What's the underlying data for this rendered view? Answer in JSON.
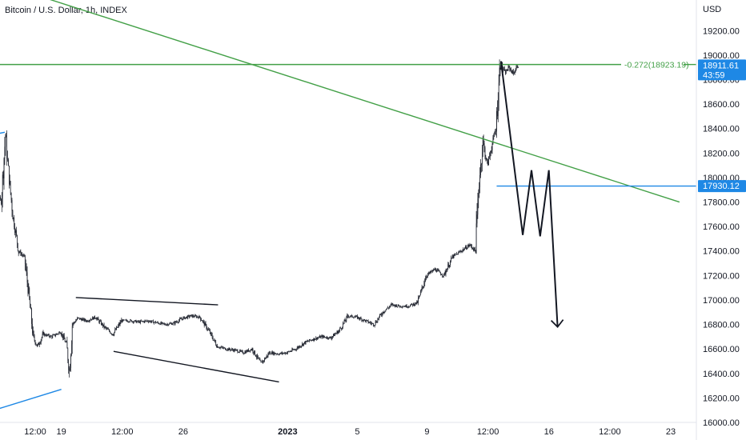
{
  "header": {
    "title": "Bitcoin / U.S. Dollar, 1h, INDEX",
    "currency": "USD"
  },
  "colors": {
    "candles": "#131722",
    "trendline": "#43a047",
    "level_line": "#1e88e5",
    "price_tag": "#1e88e5",
    "fib_label": "#43a047",
    "axis_text": "#131722"
  },
  "chart_data": {
    "type": "candlestick",
    "title": "Bitcoin / U.S. Dollar, 1h, INDEX",
    "y_unit": "USD",
    "ylim": [
      16000,
      19450
    ],
    "y_ticks": [
      16000,
      16200,
      16400,
      16600,
      16800,
      17000,
      17200,
      17400,
      17600,
      17800,
      18000,
      18200,
      18400,
      18600,
      18800,
      19000,
      19200
    ],
    "y_tick_labels": [
      "16000.00",
      "16200.00",
      "16400.00",
      "16600.00",
      "16800.00",
      "17000.00",
      "17200.00",
      "17400.00",
      "17600.00",
      "17800.00",
      "18000.00",
      "18200.00",
      "18400.00",
      "18600.00",
      "18800.00",
      "19000.00",
      "19200.00"
    ],
    "x_ticks": [
      {
        "label": "12:00",
        "time": "2022-12-17 12:00"
      },
      {
        "label": "19",
        "time": "2022-12-19 00:00"
      },
      {
        "label": "12:00",
        "time": "2022-12-22 12:00"
      },
      {
        "label": "26",
        "time": "2022-12-26 00:00"
      },
      {
        "label": "2023",
        "time": "2023-01-01 00:00",
        "bold": true
      },
      {
        "label": "5",
        "time": "2023-01-05 00:00"
      },
      {
        "label": "9",
        "time": "2023-01-09 00:00"
      },
      {
        "label": "12:00",
        "time": "2023-01-12 12:00"
      },
      {
        "label": "16",
        "time": "2023-01-16 00:00"
      },
      {
        "label": "12:00",
        "time": "2023-01-19 12:00"
      },
      {
        "label": "23",
        "time": "2023-01-23 00:00"
      }
    ],
    "price_path": [
      [
        "2022-12-14 10:00",
        17200
      ],
      [
        "2022-12-14 20:00",
        17800
      ],
      [
        "2022-12-15 06:00",
        17900
      ],
      [
        "2022-12-15 14:00",
        17800
      ],
      [
        "2022-12-15 20:00",
        18350
      ],
      [
        "2022-12-16 00:00",
        18050
      ],
      [
        "2022-12-16 06:00",
        17700
      ],
      [
        "2022-12-16 14:00",
        17400
      ],
      [
        "2022-12-16 22:00",
        17350
      ],
      [
        "2022-12-17 04:00",
        17050
      ],
      [
        "2022-12-17 10:00",
        16700
      ],
      [
        "2022-12-17 16:00",
        16620
      ],
      [
        "2022-12-18 00:00",
        16720
      ],
      [
        "2022-12-18 12:00",
        16700
      ],
      [
        "2022-12-19 00:00",
        16740
      ],
      [
        "2022-12-19 08:00",
        16640
      ],
      [
        "2022-12-19 12:00",
        16420
      ],
      [
        "2022-12-19 16:00",
        16800
      ],
      [
        "2022-12-20 00:00",
        16850
      ],
      [
        "2022-12-20 12:00",
        16830
      ],
      [
        "2022-12-21 00:00",
        16860
      ],
      [
        "2022-12-21 12:00",
        16780
      ],
      [
        "2022-12-22 00:00",
        16720
      ],
      [
        "2022-12-22 12:00",
        16830
      ],
      [
        "2022-12-23 00:00",
        16830
      ],
      [
        "2022-12-23 12:00",
        16820
      ],
      [
        "2022-12-24 00:00",
        16830
      ],
      [
        "2022-12-25 00:00",
        16800
      ],
      [
        "2022-12-25 12:00",
        16810
      ],
      [
        "2022-12-26 00:00",
        16850
      ],
      [
        "2022-12-26 12:00",
        16870
      ],
      [
        "2022-12-27 00:00",
        16860
      ],
      [
        "2022-12-27 12:00",
        16750
      ],
      [
        "2022-12-28 00:00",
        16620
      ],
      [
        "2022-12-28 12:00",
        16600
      ],
      [
        "2022-12-29 00:00",
        16590
      ],
      [
        "2022-12-29 12:00",
        16570
      ],
      [
        "2022-12-30 00:00",
        16600
      ],
      [
        "2022-12-30 12:00",
        16480
      ],
      [
        "2022-12-31 00:00",
        16570
      ],
      [
        "2022-12-31 12:00",
        16560
      ],
      [
        "2023-01-01 00:00",
        16570
      ],
      [
        "2023-01-01 12:00",
        16600
      ],
      [
        "2023-01-02 00:00",
        16650
      ],
      [
        "2023-01-02 12:00",
        16680
      ],
      [
        "2023-01-03 00:00",
        16700
      ],
      [
        "2023-01-03 12:00",
        16690
      ],
      [
        "2023-01-04 00:00",
        16750
      ],
      [
        "2023-01-04 12:00",
        16870
      ],
      [
        "2023-01-05 00:00",
        16860
      ],
      [
        "2023-01-05 12:00",
        16830
      ],
      [
        "2023-01-06 00:00",
        16800
      ],
      [
        "2023-01-06 12:00",
        16900
      ],
      [
        "2023-01-07 00:00",
        16960
      ],
      [
        "2023-01-07 12:00",
        16950
      ],
      [
        "2023-01-08 00:00",
        16950
      ],
      [
        "2023-01-08 12:00",
        16980
      ],
      [
        "2023-01-09 00:00",
        17200
      ],
      [
        "2023-01-09 12:00",
        17250
      ],
      [
        "2023-01-10 00:00",
        17200
      ],
      [
        "2023-01-10 12:00",
        17350
      ],
      [
        "2023-01-11 00:00",
        17400
      ],
      [
        "2023-01-11 12:00",
        17450
      ],
      [
        "2023-01-11 20:00",
        17400
      ],
      [
        "2023-01-12 00:00",
        17900
      ],
      [
        "2023-01-12 06:00",
        18300
      ],
      [
        "2023-01-12 12:00",
        18100
      ],
      [
        "2023-01-12 18:00",
        18250
      ],
      [
        "2023-01-13 00:00",
        18400
      ],
      [
        "2023-01-13 06:00",
        18950
      ],
      [
        "2023-01-13 12:00",
        18850
      ],
      [
        "2023-01-13 18:00",
        18900
      ],
      [
        "2023-01-14 00:00",
        18850
      ],
      [
        "2023-01-14 06:00",
        18911.61
      ]
    ],
    "trendlines": [
      {
        "color": "green",
        "from": [
          "2022-12-18 00:00",
          19470
        ],
        "to": [
          "2023-01-23 12:00",
          17800
        ]
      },
      {
        "color": "blue",
        "from": [
          "2022-12-14 00:00",
          16050
        ],
        "to": [
          "2022-12-19 00:00",
          16270
        ]
      },
      {
        "color": "blue",
        "from": [
          "2022-12-14 00:00",
          18320
        ],
        "to": [
          "2022-12-15 18:00",
          18370
        ]
      }
    ],
    "channel_lines": [
      {
        "from": [
          "2022-12-19 20:00",
          17020
        ],
        "to": [
          "2022-12-28 00:00",
          16960
        ]
      },
      {
        "from": [
          "2022-12-22 00:00",
          16580
        ],
        "to": [
          "2022-12-31 12:00",
          16330
        ]
      }
    ],
    "horizontal_levels": [
      {
        "price": 18923.19,
        "color": "green",
        "label": "-0.272(18923.19)"
      },
      {
        "price": 17930.12,
        "color": "blue",
        "from": "2023-01-13 00:00"
      }
    ],
    "projection_path": [
      [
        "2023-01-13 06:00",
        18950
      ],
      [
        "2023-01-14 12:00",
        17530
      ],
      [
        "2023-01-15 00:00",
        18060
      ],
      [
        "2023-01-15 12:00",
        17520
      ],
      [
        "2023-01-16 00:00",
        18060
      ],
      [
        "2023-01-16 12:00",
        16780
      ]
    ],
    "price_tags": [
      {
        "value": "18911.61",
        "sub": "43:59",
        "price": 18911.61,
        "color": "blue"
      },
      {
        "value": "17930.12",
        "price": 17930.12,
        "color": "blue"
      }
    ]
  }
}
